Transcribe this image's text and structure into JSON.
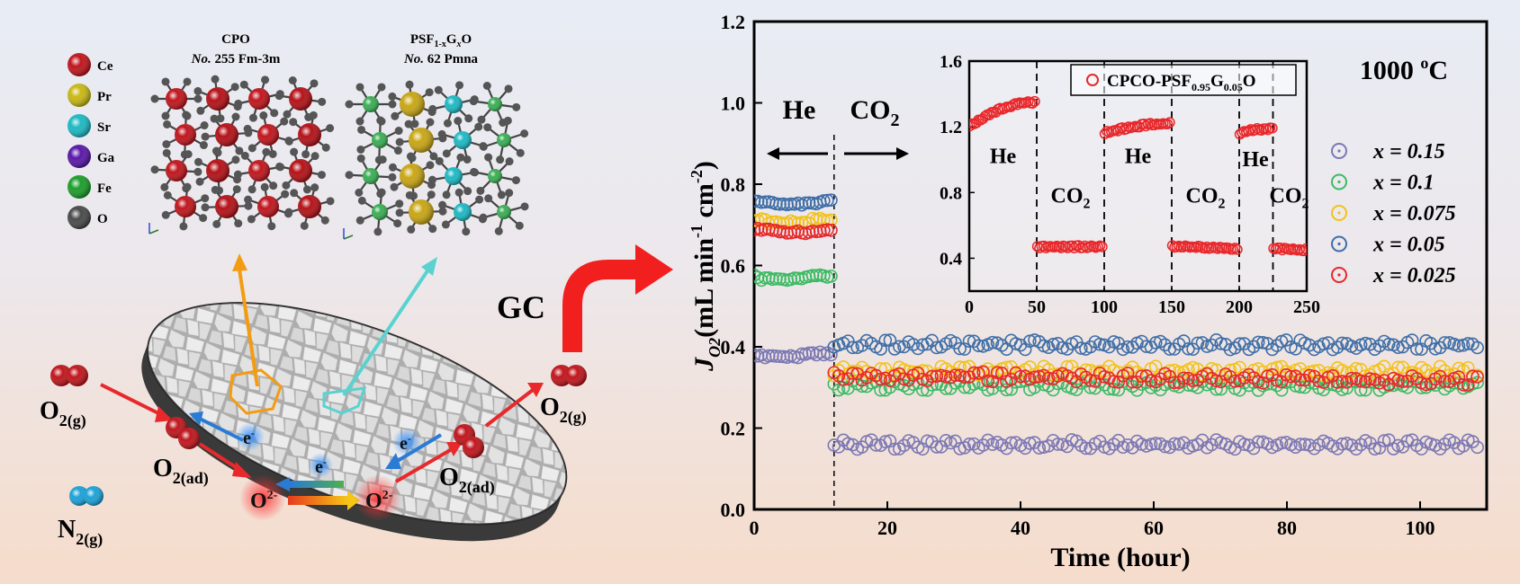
{
  "schematic": {
    "legend": [
      {
        "label": "Ce",
        "color": "#c0161d"
      },
      {
        "label": "Pr",
        "color": "#c9b815"
      },
      {
        "label": "Sr",
        "color": "#1db9c4"
      },
      {
        "label": "Ga",
        "color": "#5a18a8"
      },
      {
        "label": "Fe",
        "color": "#1d9e2a"
      },
      {
        "label": "O",
        "color": "#4a4a4a"
      }
    ],
    "phase1": {
      "name": "CPO",
      "no": "No.",
      "group": " 255 Fm-3m"
    },
    "phase2": {
      "name_a": "PSF",
      "name_sub": "1-x",
      "name_b": "G",
      "name_sub2": "x",
      "name_c": "O",
      "no": "No.",
      "group": " 62 Pmna"
    },
    "gc_label": "GC",
    "species": {
      "o2": "O",
      "sub_g": "2(g)",
      "sub_ad": "2(ad)",
      "n2": "N",
      "o_ion": "O",
      "o_ion_sup": "2-",
      "electron": "e",
      "electron_sup": "-"
    }
  },
  "chart_data": {
    "type": "scatter",
    "xlabel": "Time (hour)",
    "ylabel": "J",
    "ylabel_sub": "O2",
    "ylabel_rest": "(mL min",
    "ylabel_sup1": "-1",
    "ylabel_rest2": " cm",
    "ylabel_sup2": "-2",
    "ylabel_close": ")",
    "xlim": [
      0,
      110
    ],
    "ylim": [
      0,
      1.2
    ],
    "xticks": [
      0,
      20,
      40,
      60,
      80,
      100
    ],
    "yticks": [
      "0.0",
      "0.2",
      "0.4",
      "0.6",
      "0.8",
      "1.0",
      "1.2"
    ],
    "temperature_label": "1000 ",
    "temperature_sup": "o",
    "temperature_unit": "C",
    "switch_time": 12,
    "he_label": "He",
    "co2_label": "CO",
    "co2_sub": "2",
    "series": [
      {
        "name": "x = 0.15",
        "color": "#7b78b4",
        "he": 0.38,
        "co2": 0.16
      },
      {
        "name": "x = 0.1",
        "color": "#3cba62",
        "he": 0.57,
        "co2": 0.305
      },
      {
        "name": "x = 0.075",
        "color": "#f2c21a",
        "he": 0.71,
        "co2": 0.34
      },
      {
        "name": "x = 0.05",
        "color": "#3f6ea6",
        "he": 0.755,
        "co2": 0.405
      },
      {
        "name": "x = 0.025",
        "color": "#e8282b",
        "he": 0.685,
        "co2": 0.33
      }
    ],
    "inset": {
      "type": "scatter",
      "xlim": [
        0,
        250
      ],
      "ylim": [
        0.2,
        1.6
      ],
      "xticks": [
        0,
        50,
        100,
        150,
        200,
        250
      ],
      "yticks": [
        "0.4",
        "0.8",
        "1.2",
        "1.6"
      ],
      "legend_a": "CPCO-PSF",
      "legend_sub1": "0.95",
      "legend_b": "G",
      "legend_sub2": "0.05",
      "legend_c": "O",
      "color": "#e8282b",
      "switches": [
        50,
        100,
        150,
        200,
        225
      ],
      "segments": [
        {
          "gas": "He",
          "x": [
            0,
            50
          ],
          "y": [
            1.2,
            1.35
          ]
        },
        {
          "gas": "CO2",
          "x": [
            50,
            100
          ],
          "y": [
            0.47,
            0.47
          ]
        },
        {
          "gas": "He",
          "x": [
            100,
            150
          ],
          "y": [
            1.16,
            1.22
          ]
        },
        {
          "gas": "CO2",
          "x": [
            150,
            200
          ],
          "y": [
            0.47,
            0.46
          ]
        },
        {
          "gas": "He",
          "x": [
            200,
            225
          ],
          "y": [
            1.16,
            1.19
          ]
        },
        {
          "gas": "CO2",
          "x": [
            225,
            250
          ],
          "y": [
            0.46,
            0.45
          ]
        }
      ]
    }
  }
}
